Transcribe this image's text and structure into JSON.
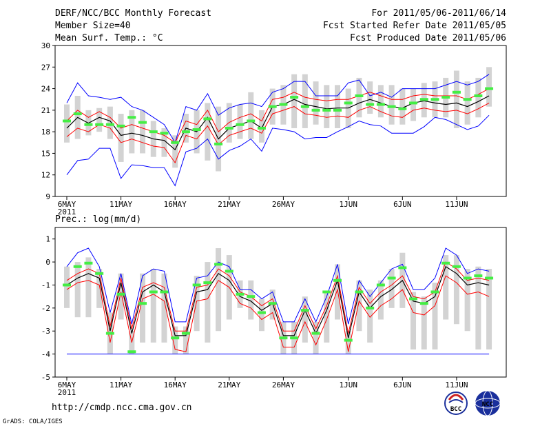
{
  "header": {
    "title": "DERF/NCC/BCC Monthly Forecast",
    "member_size": "Member Size=40",
    "variable": "Mean Surf. Temp.: °C",
    "period": "For 2011/05/06-2011/06/14",
    "fcst_started": "Fcst Started Refer Date 2011/05/05",
    "fcst_produced": "Fcst Produced Date 2011/05/06"
  },
  "footer": {
    "url": "http://cmdp.ncc.cma.gov.cn",
    "credit": "GrADS: COLA/IGES",
    "logo_bcc_text": "BCC",
    "logo_ncc_text": "NCC"
  },
  "colors": {
    "box": "#d3d3d3",
    "mean": "#000000",
    "obs": "#44ee44",
    "envelope": "#0000ff",
    "spread": "#ff0000"
  },
  "chart_data": [
    {
      "type": "line",
      "title": "Mean Surf. Temp.: °C",
      "ylim": [
        9,
        30
      ],
      "yticks": [
        9,
        12,
        15,
        18,
        21,
        24,
        27,
        30
      ],
      "x_days": 40,
      "x_tick_days": [
        0,
        5,
        10,
        15,
        20,
        26,
        31,
        36
      ],
      "x_tick_labels": [
        "6MAY",
        "11MAY",
        "16MAY",
        "21MAY",
        "26MAY",
        "1JUN",
        "6JUN",
        "11JUN"
      ],
      "x_year_label": "2011",
      "series": [
        {
          "name": "ensemble mean",
          "values": [
            18.5,
            20.0,
            19.2,
            20.0,
            19.5,
            17.5,
            17.8,
            17.5,
            17.0,
            16.8,
            15.5,
            18.5,
            18.0,
            20.0,
            17.0,
            18.5,
            19.0,
            19.5,
            18.5,
            21.5,
            21.8,
            22.5,
            21.8,
            21.5,
            21.2,
            21.3,
            21.3,
            22.0,
            22.5,
            22.0,
            21.5,
            21.3,
            22.0,
            22.3,
            22.0,
            21.8,
            22.0,
            21.5,
            22.2,
            23.0
          ]
        },
        {
          "name": "spread upper",
          "values": [
            19.5,
            21.0,
            20.0,
            20.8,
            20.0,
            18.5,
            19.0,
            18.5,
            18.0,
            17.5,
            16.5,
            19.5,
            19.0,
            21.0,
            18.0,
            19.3,
            20.0,
            20.5,
            19.5,
            22.5,
            22.8,
            23.5,
            22.8,
            22.5,
            22.3,
            22.5,
            22.5,
            23.0,
            23.5,
            23.0,
            22.5,
            22.5,
            23.0,
            23.2,
            23.0,
            23.0,
            23.0,
            22.5,
            23.2,
            24.0
          ]
        },
        {
          "name": "spread lower",
          "values": [
            17.3,
            18.5,
            18.0,
            19.0,
            18.5,
            16.5,
            17.0,
            16.5,
            16.0,
            15.8,
            13.7,
            17.5,
            17.0,
            18.8,
            16.2,
            17.5,
            18.0,
            18.5,
            17.8,
            20.5,
            21.0,
            21.5,
            20.5,
            20.3,
            20.0,
            20.2,
            20.0,
            21.0,
            21.5,
            20.8,
            20.2,
            20.0,
            21.0,
            21.3,
            21.0,
            20.8,
            21.0,
            20.5,
            21.2,
            22.0
          ]
        },
        {
          "name": "envelope max",
          "values": [
            22.0,
            24.8,
            23.0,
            22.8,
            22.5,
            22.8,
            21.5,
            21.0,
            20.0,
            19.0,
            16.5,
            21.5,
            21.0,
            23.3,
            20.3,
            21.3,
            21.8,
            22.0,
            21.5,
            23.5,
            24.0,
            25.0,
            25.0,
            23.0,
            23.0,
            23.0,
            24.8,
            25.2,
            23.0,
            23.5,
            22.8,
            24.0,
            24.0,
            24.0,
            24.0,
            24.5,
            25.0,
            24.5,
            25.0,
            26.0
          ]
        },
        {
          "name": "envelope min",
          "values": [
            12.0,
            14.0,
            14.2,
            15.7,
            15.7,
            11.5,
            13.4,
            13.3,
            13.0,
            13.0,
            10.5,
            15.2,
            15.7,
            17.0,
            14.2,
            15.4,
            16.0,
            17.0,
            15.3,
            18.5,
            18.3,
            18.0,
            17.0,
            17.2,
            17.2,
            18.0,
            18.7,
            19.5,
            19.0,
            18.8,
            17.8,
            17.8,
            17.8,
            18.7,
            20.0,
            19.7,
            19.0,
            18.3,
            18.8,
            20.3
          ]
        },
        {
          "name": "observed",
          "values": [
            19.5,
            20.5,
            19.0,
            19.0,
            19.0,
            18.8,
            20.0,
            19.3,
            18.0,
            17.8,
            16.5,
            18.0,
            18.3,
            19.8,
            16.3,
            18.5,
            19.0,
            19.5,
            18.5,
            21.5,
            21.8,
            22.8,
            21.5,
            21.0,
            21.0,
            21.0,
            22.0,
            23.0,
            21.8,
            21.8,
            21.5,
            21.2,
            22.0,
            22.5,
            22.5,
            22.8,
            23.5,
            22.5,
            23.0,
            24.0
          ]
        }
      ],
      "box_high": [
        21.8,
        23.0,
        21.0,
        21.3,
        21.5,
        20.5,
        21.0,
        21.0,
        19.5,
        18.5,
        17.5,
        20.5,
        21.0,
        22.0,
        21.5,
        22.0,
        21.8,
        23.5,
        21.0,
        24.0,
        24.5,
        26.0,
        26.0,
        25.0,
        24.5,
        24.5,
        24.0,
        25.5,
        25.0,
        24.5,
        24.5,
        24.0,
        24.0,
        24.8,
        25.0,
        25.5,
        26.5,
        25.0,
        25.5,
        27.0
      ],
      "box_low": [
        16.5,
        17.0,
        17.5,
        18.0,
        17.0,
        13.8,
        15.0,
        15.0,
        14.5,
        14.5,
        13.0,
        16.5,
        15.0,
        14.0,
        12.5,
        16.5,
        17.0,
        17.0,
        16.5,
        19.0,
        19.0,
        18.5,
        18.5,
        19.0,
        18.5,
        18.5,
        18.5,
        20.0,
        20.5,
        20.0,
        19.0,
        19.0,
        19.5,
        20.0,
        20.0,
        20.0,
        18.5,
        19.0,
        20.0,
        21.5
      ]
    },
    {
      "type": "line",
      "title": "Prec.: log(mm/d)",
      "ylim": [
        -5,
        1.5
      ],
      "yticks": [
        -5,
        -4,
        -3,
        -2,
        -1,
        0,
        1
      ],
      "x_days": 40,
      "x_tick_days": [
        0,
        5,
        10,
        15,
        20,
        26,
        31,
        36
      ],
      "x_tick_labels": [
        "6MAY",
        "11MAY",
        "16MAY",
        "21MAY",
        "26MAY",
        "1JUN",
        "6JUN",
        "11JUN"
      ],
      "x_year_label": "2011",
      "series": [
        {
          "name": "ensemble mean",
          "values": [
            -1.0,
            -0.7,
            -0.5,
            -0.7,
            -3.0,
            -0.9,
            -3.1,
            -1.3,
            -1.0,
            -1.3,
            -3.2,
            -3.2,
            -1.3,
            -1.2,
            -0.5,
            -0.8,
            -1.5,
            -1.7,
            -2.1,
            -1.8,
            -3.2,
            -3.2,
            -2.1,
            -3.1,
            -2.1,
            -0.8,
            -3.3,
            -1.3,
            -2.0,
            -1.5,
            -1.2,
            -0.8,
            -1.7,
            -1.8,
            -1.5,
            -0.2,
            -0.5,
            -1.0,
            -0.9,
            -1.0
          ]
        },
        {
          "name": "spread upper",
          "values": [
            -0.8,
            -0.5,
            -0.3,
            -0.5,
            -2.8,
            -0.7,
            -2.9,
            -1.1,
            -0.9,
            -1.1,
            -3.0,
            -3.0,
            -1.1,
            -1.0,
            -0.3,
            -0.6,
            -1.3,
            -1.5,
            -1.9,
            -1.6,
            -3.0,
            -3.0,
            -1.9,
            -2.9,
            -1.9,
            -0.6,
            -3.1,
            -1.1,
            -1.8,
            -1.3,
            -1.0,
            -0.6,
            -1.5,
            -1.6,
            -1.3,
            0.0,
            -0.3,
            -0.8,
            -0.7,
            -0.8
          ]
        },
        {
          "name": "spread lower",
          "values": [
            -1.2,
            -0.9,
            -0.8,
            -1.0,
            -3.5,
            -1.3,
            -3.5,
            -1.6,
            -1.4,
            -1.7,
            -3.8,
            -3.9,
            -1.7,
            -1.6,
            -0.8,
            -1.1,
            -1.8,
            -2.0,
            -2.5,
            -2.2,
            -3.7,
            -3.7,
            -2.6,
            -3.6,
            -2.5,
            -1.2,
            -3.9,
            -1.7,
            -2.4,
            -1.9,
            -1.6,
            -1.2,
            -2.2,
            -2.3,
            -1.9,
            -0.6,
            -0.9,
            -1.4,
            -1.3,
            -1.5
          ]
        },
        {
          "name": "envelope max",
          "values": [
            -0.2,
            0.4,
            0.6,
            -0.2,
            -2.2,
            -0.5,
            -2.7,
            -0.6,
            -0.3,
            -0.4,
            -2.6,
            -2.6,
            -0.7,
            -0.6,
            0.0,
            -0.2,
            -1.2,
            -1.2,
            -1.6,
            -1.3,
            -2.6,
            -2.6,
            -1.6,
            -2.6,
            -1.5,
            -0.1,
            -2.7,
            -0.8,
            -1.5,
            -0.9,
            -0.3,
            -0.1,
            -1.2,
            -1.2,
            -0.7,
            0.6,
            0.3,
            -0.5,
            -0.3,
            -0.4
          ]
        },
        {
          "name": "envelope min",
          "values": [
            -4.0,
            -4.0,
            -4.0,
            -4.0,
            -4.0,
            -4.0,
            -4.0,
            -4.0,
            -4.0,
            -4.0,
            -4.0,
            -4.0,
            -4.0,
            -4.0,
            -4.0,
            -4.0,
            -4.0,
            -4.0,
            -4.0,
            -4.0,
            -4.0,
            -4.0,
            -4.0,
            -4.0,
            -4.0,
            -4.0,
            -4.0,
            -4.0,
            -4.0,
            -4.0,
            -4.0,
            -4.0,
            -4.0,
            -4.0,
            -4.0,
            -4.0,
            -4.0,
            -4.0,
            -4.0,
            -4.0
          ]
        },
        {
          "name": "observed",
          "values": [
            -1.0,
            -0.2,
            -0.05,
            -0.5,
            -3.1,
            -1.4,
            -3.9,
            -1.8,
            -1.3,
            -1.3,
            -3.3,
            -3.1,
            -1.0,
            -0.9,
            -0.1,
            -0.4,
            -1.4,
            -1.5,
            -2.2,
            -1.8,
            -3.3,
            -3.3,
            -2.1,
            -3.1,
            -1.3,
            -0.8,
            -3.4,
            -1.3,
            -2.0,
            -1.0,
            -0.7,
            -0.25,
            -1.6,
            -1.8,
            -1.3,
            -0.05,
            -0.2,
            -0.7,
            -0.6,
            -0.7
          ]
        }
      ],
      "box_high": [
        -0.2,
        0.0,
        0.2,
        -0.3,
        -2.2,
        -0.5,
        -3.0,
        -0.5,
        -0.3,
        -0.5,
        -2.8,
        -2.8,
        -0.6,
        0.0,
        0.6,
        0.3,
        -0.8,
        -0.8,
        -1.6,
        -1.2,
        -2.6,
        -2.6,
        -1.5,
        -2.6,
        -1.3,
        -0.1,
        -3.0,
        -0.8,
        -1.2,
        -0.8,
        -0.3,
        0.4,
        -1.3,
        -1.5,
        -0.9,
        0.3,
        0.3,
        -0.3,
        -0.2,
        -0.3
      ],
      "box_low": [
        -2.0,
        -2.4,
        -2.4,
        -2.0,
        -4.0,
        -2.5,
        -4.0,
        -3.5,
        -3.5,
        -3.5,
        -4.0,
        -4.0,
        -3.0,
        -3.5,
        -3.0,
        -2.5,
        -2.0,
        -2.5,
        -3.0,
        -2.5,
        -4.0,
        -4.0,
        -3.5,
        -4.0,
        -3.5,
        -2.5,
        -4.0,
        -3.0,
        -3.5,
        -2.5,
        -2.0,
        -2.0,
        -3.8,
        -3.8,
        -3.8,
        -2.5,
        -2.7,
        -3.0,
        -3.8,
        -3.8
      ]
    }
  ]
}
